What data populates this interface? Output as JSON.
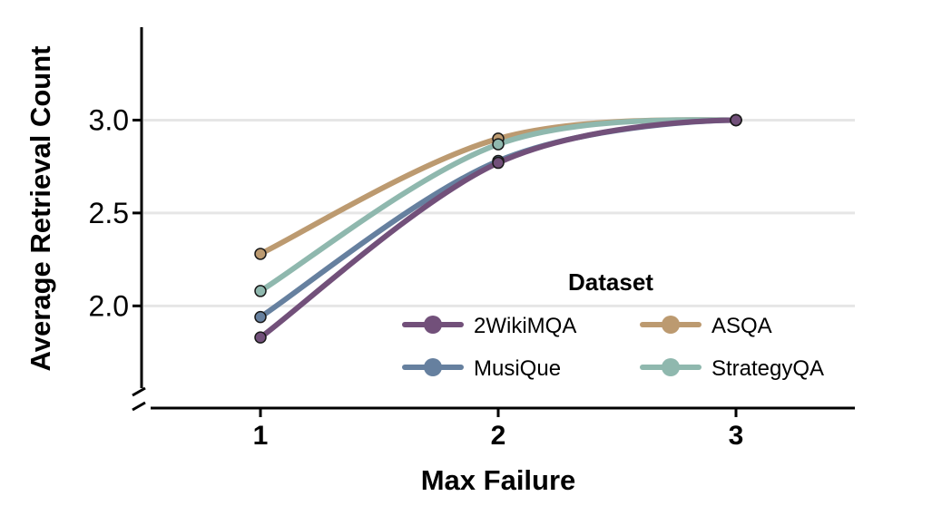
{
  "chart_data": {
    "type": "line",
    "title": "",
    "xlabel": "Max Failure",
    "ylabel": "Average Retrieval Count",
    "x": [
      1,
      2,
      3
    ],
    "x_ticks": [
      "1",
      "2",
      "3"
    ],
    "y_ticks": [
      "2.0",
      "2.5",
      "3.0"
    ],
    "y_tick_values": [
      2.0,
      2.5,
      3.0
    ],
    "xlim": [
      0.5,
      3.5
    ],
    "ylim": [
      1.45,
      3.5
    ],
    "grid": "horizontal",
    "axis_break": "y",
    "legend": {
      "title": "Dataset",
      "placement": "bottom-right"
    },
    "series": [
      {
        "name": "2WikiMQA",
        "color": "#72507a",
        "values": [
          1.83,
          2.77,
          3.0
        ]
      },
      {
        "name": "MusiQue",
        "color": "#66809f",
        "values": [
          1.94,
          2.78,
          3.0
        ]
      },
      {
        "name": "ASQA",
        "color": "#bc9a70",
        "values": [
          2.28,
          2.9,
          3.0
        ]
      },
      {
        "name": "StrategyQA",
        "color": "#8fb8ae",
        "values": [
          2.08,
          2.87,
          3.0
        ]
      }
    ]
  }
}
